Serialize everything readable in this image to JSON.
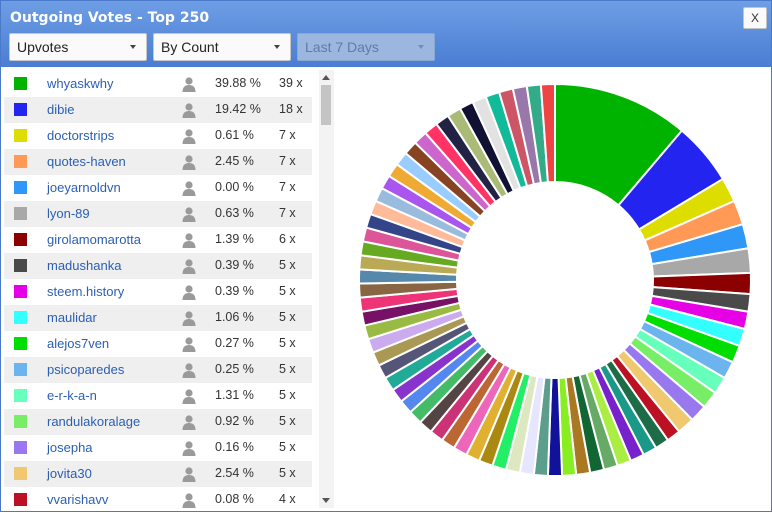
{
  "window": {
    "title": "Outgoing Votes - Top 250",
    "close_label": "X"
  },
  "filters": {
    "type": "Upvotes",
    "metric": "By Count",
    "period": "Last 7 Days"
  },
  "rows": [
    {
      "name": "whyaskwhy",
      "pct": "39.88 %",
      "count": "39 x",
      "color": "#00b300"
    },
    {
      "name": "dibie",
      "pct": "19.42 %",
      "count": "18 x",
      "color": "#2424f0"
    },
    {
      "name": "doctorstrips",
      "pct": "0.61 %",
      "count": "7 x",
      "color": "#dddd00"
    },
    {
      "name": "quotes-haven",
      "pct": "2.45 %",
      "count": "7 x",
      "color": "#ff9955"
    },
    {
      "name": "joeyarnoldvn",
      "pct": "0.00 %",
      "count": "7 x",
      "color": "#2f97f7"
    },
    {
      "name": "lyon-89",
      "pct": "0.63 %",
      "count": "7 x",
      "color": "#a8a8a8"
    },
    {
      "name": "girolamomarotta",
      "pct": "1.39 %",
      "count": "6 x",
      "color": "#8b0000"
    },
    {
      "name": "madushanka",
      "pct": "0.39 %",
      "count": "5 x",
      "color": "#4a4a4a"
    },
    {
      "name": "steem.history",
      "pct": "0.39 %",
      "count": "5 x",
      "color": "#e600e6"
    },
    {
      "name": "maulidar",
      "pct": "1.06 %",
      "count": "5 x",
      "color": "#33ffff"
    },
    {
      "name": "alejos7ven",
      "pct": "0.27 %",
      "count": "5 x",
      "color": "#00dd00"
    },
    {
      "name": "psicoparedes",
      "pct": "0.25 %",
      "count": "5 x",
      "color": "#6cb4ee"
    },
    {
      "name": "e-r-k-a-n",
      "pct": "1.31 %",
      "count": "5 x",
      "color": "#66ffbb"
    },
    {
      "name": "randulakoralage",
      "pct": "0.92 %",
      "count": "5 x",
      "color": "#77ee66"
    },
    {
      "name": "josepha",
      "pct": "0.16 %",
      "count": "5 x",
      "color": "#9977ee"
    },
    {
      "name": "jovita30",
      "pct": "2.54 %",
      "count": "5 x",
      "color": "#f0c870"
    },
    {
      "name": "vvarishavv",
      "pct": "0.08 %",
      "count": "4 x",
      "color": "#bb1122"
    }
  ],
  "chart_data": {
    "type": "pie",
    "style": "donut",
    "values": [
      39,
      18,
      7,
      7,
      7,
      7,
      6,
      5,
      5,
      5,
      5,
      5,
      5,
      5,
      5,
      5,
      4,
      4,
      4,
      4,
      4,
      4,
      4,
      4,
      4,
      4,
      4,
      4,
      4,
      4,
      4,
      4,
      4,
      4,
      4,
      4,
      4,
      4,
      4,
      4,
      4,
      4,
      4,
      4,
      4,
      4,
      4,
      4,
      4,
      4,
      4,
      4,
      4,
      4,
      4,
      4,
      4,
      4,
      4,
      4,
      4,
      4,
      4,
      4,
      4,
      4,
      4,
      4,
      4
    ],
    "colors": [
      "#00b300",
      "#2424f0",
      "#dddd00",
      "#ff9955",
      "#2f97f7",
      "#a8a8a8",
      "#8b0000",
      "#4a4a4a",
      "#e600e6",
      "#33ffff",
      "#00dd00",
      "#6cb4ee",
      "#66ffbb",
      "#77ee66",
      "#9977ee",
      "#f0c870",
      "#bb1122",
      "#1e6b48",
      "#1b9988",
      "#7722cc",
      "#aaee44",
      "#66aa66",
      "#116633",
      "#aa7722",
      "#88ee22",
      "#111199",
      "#5c9e8c",
      "#e6e6ff",
      "#dde8c0",
      "#22ee66",
      "#aa8811",
      "#e0b030",
      "#ee66bb",
      "#bb6633",
      "#cc3377",
      "#554444",
      "#44bb66",
      "#5588ee",
      "#8833cc",
      "#22aa99",
      "#555577",
      "#aa9955",
      "#ccaaee",
      "#99bb44",
      "#771166",
      "#ee3377",
      "#886644",
      "#5588aa",
      "#bbaa55",
      "#66aa22",
      "#dd5599",
      "#334488",
      "#ffbb99",
      "#99bbdd",
      "#aa55ee",
      "#eeaa33",
      "#99ccff",
      "#884422",
      "#cc66cc",
      "#ff3366",
      "#222244",
      "#aabb77",
      "#111133",
      "#e2e2e2",
      "#11bb99",
      "#cc5566",
      "#9977aa",
      "#33aa88",
      "#ee4444"
    ]
  }
}
